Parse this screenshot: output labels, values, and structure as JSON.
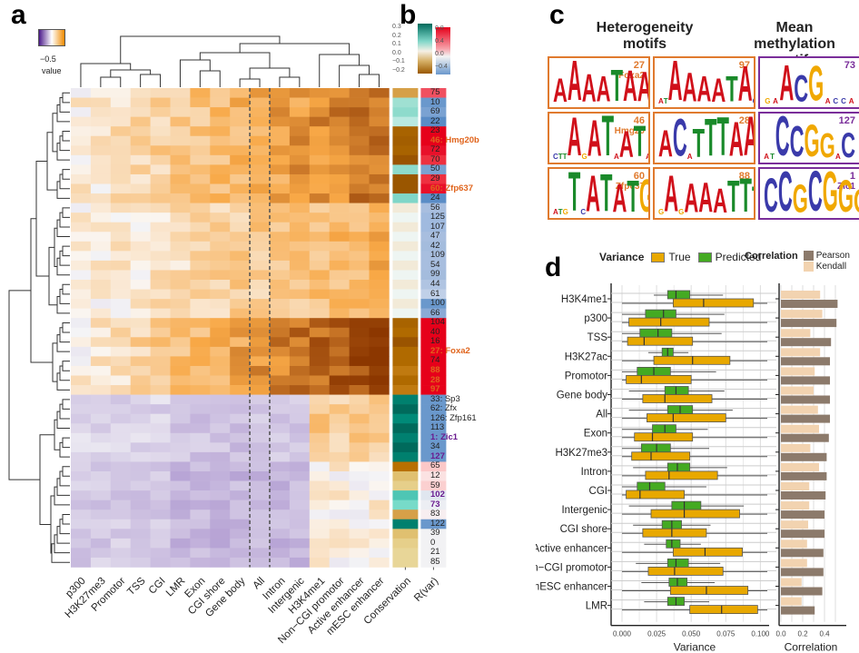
{
  "panels": {
    "a": "a",
    "b": "b",
    "c": "c",
    "d": "d"
  },
  "legend_a": {
    "tick": "−0.5",
    "label": "value",
    "colors": [
      "#4b1a8a",
      "#ffffff",
      "#f08a00"
    ]
  },
  "legend_b": {
    "conservation_ticks": [
      "0.3",
      "0.2",
      "0.1",
      "0.0",
      "−0.1",
      "−0.2"
    ],
    "rvar_ticks": [
      "0.8",
      "0.4",
      "0.0",
      "−0.4"
    ]
  },
  "heatmap": {
    "columns": [
      "p300",
      "H3K27me3",
      "Promotor",
      "TSS",
      "CGI",
      "LMR",
      "Exon",
      "CGI shore",
      "Gene body",
      "All",
      "Intron",
      "Intergenic",
      "H3K4me1",
      "Non−CGI promotor",
      "Active enhancer",
      "mESC enhancer"
    ],
    "annotation_columns": [
      "Conservation",
      "R(var)"
    ],
    "rows": [
      {
        "label": "75",
        "hl": ""
      },
      {
        "label": "10",
        "hl": ""
      },
      {
        "label": "69",
        "hl": ""
      },
      {
        "label": "22",
        "hl": ""
      },
      {
        "label": "23",
        "hl": ""
      },
      {
        "label": "46: Hmg20b",
        "hl": "orange"
      },
      {
        "label": "72",
        "hl": ""
      },
      {
        "label": "70",
        "hl": ""
      },
      {
        "label": "50",
        "hl": ""
      },
      {
        "label": "29",
        "hl": ""
      },
      {
        "label": "60: Zfp637",
        "hl": "orange"
      },
      {
        "label": "24",
        "hl": ""
      },
      {
        "label": "56",
        "hl": ""
      },
      {
        "label": "125",
        "hl": ""
      },
      {
        "label": "107",
        "hl": ""
      },
      {
        "label": "47",
        "hl": ""
      },
      {
        "label": "42",
        "hl": ""
      },
      {
        "label": "109",
        "hl": ""
      },
      {
        "label": "54",
        "hl": ""
      },
      {
        "label": "99",
        "hl": ""
      },
      {
        "label": "44",
        "hl": ""
      },
      {
        "label": "61",
        "hl": ""
      },
      {
        "label": "100",
        "hl": ""
      },
      {
        "label": "66",
        "hl": ""
      },
      {
        "label": "104",
        "hl": ""
      },
      {
        "label": "40",
        "hl": ""
      },
      {
        "label": "16",
        "hl": ""
      },
      {
        "label": "27: Foxa2",
        "hl": "orange"
      },
      {
        "label": "74",
        "hl": ""
      },
      {
        "label": "88",
        "hl": "orange"
      },
      {
        "label": "28",
        "hl": "orange"
      },
      {
        "label": "97",
        "hl": "orange"
      },
      {
        "label": "33: Sp3",
        "hl": ""
      },
      {
        "label": "62: Zfx",
        "hl": ""
      },
      {
        "label": "126: Zfp161",
        "hl": ""
      },
      {
        "label": "113",
        "hl": ""
      },
      {
        "label": "1: Zic1",
        "hl": "purple"
      },
      {
        "label": "34",
        "hl": ""
      },
      {
        "label": "127",
        "hl": "purple"
      },
      {
        "label": "65",
        "hl": ""
      },
      {
        "label": "12",
        "hl": ""
      },
      {
        "label": "59",
        "hl": ""
      },
      {
        "label": "102",
        "hl": "purple"
      },
      {
        "label": "73",
        "hl": "purple"
      },
      {
        "label": "83",
        "hl": ""
      },
      {
        "label": "122",
        "hl": ""
      },
      {
        "label": "39",
        "hl": ""
      },
      {
        "label": "0",
        "hl": ""
      },
      {
        "label": "21",
        "hl": ""
      },
      {
        "label": "85",
        "hl": ""
      }
    ],
    "highlight_colors": {
      "orange": "#e0641c",
      "purple": "#6a1b8f"
    }
  },
  "motifs": {
    "heterogeneity_title": "Heterogeneity motifs",
    "methylation_title": "Mean methylation motifs",
    "heterogeneity_color": "#e07a2e",
    "methylation_color": "#7a2e9a",
    "heterogeneity": [
      {
        "id": "27",
        "name": "Foxa2",
        "seq": "AAAATAA···A"
      },
      {
        "id": "97",
        "name": "",
        "seq": "··AAAATA·A"
      },
      {
        "id": "46",
        "name": "Hmg20",
        "seq": "···A·AT·AT·A"
      },
      {
        "id": "28",
        "name": "",
        "seq": "AC·TTTAAATT"
      },
      {
        "id": "60",
        "name": "Zfp637",
        "seq": "···T·ATATG"
      },
      {
        "id": "88",
        "name": "",
        "seq": "·A·AAATTT·"
      }
    ],
    "methylation": [
      {
        "id": "73",
        "name": "",
        "seq": "··ACG····"
      },
      {
        "id": "127",
        "name": "",
        "seq": "··CCGG·C"
      },
      {
        "id": "1",
        "name": "Zic1",
        "seq": "CCGCGGGGGG"
      }
    ]
  },
  "panel_d": {
    "variance_legend": {
      "title": "Variance",
      "true": "True",
      "predicted": "Predicted"
    },
    "correlation_legend": {
      "title": "Correlation",
      "pearson": "Pearson",
      "kendall": "Kendall"
    },
    "colors": {
      "true": "#e8a800",
      "predicted": "#44aa22",
      "pearson": "#8c7a6b",
      "kendall": "#f2d3b0"
    }
  },
  "chart_data": [
    {
      "type": "heatmap",
      "title": "",
      "xlabel": "",
      "ylabel": "",
      "colorbar": {
        "label": "value",
        "range": [
          -0.5,
          0.5
        ]
      },
      "dashed_column_separators": [
        "All"
      ]
    },
    {
      "type": "bar",
      "orientation": "horizontal-boxplot",
      "title": "",
      "xlabel": "Variance",
      "xlim": [
        0,
        0.105
      ],
      "xticks": [
        "0.000",
        "0.025",
        "0.050",
        "0.075",
        "0.100"
      ],
      "categories": [
        "H3K4me1",
        "p300",
        "TSS",
        "H3K27ac",
        "Promotor",
        "Gene body",
        "All",
        "Exon",
        "H3K27me3",
        "Intron",
        "CGI",
        "Intergenic",
        "CGI shore",
        "Active enhancer",
        "Non−CGI promotor",
        "mESC enhancer",
        "LMR"
      ],
      "series": [
        {
          "name": "True",
          "boxes": [
            [
              0,
              0.037,
              0.059,
              0.095,
              0.105
            ],
            [
              0,
              0.005,
              0.028,
              0.063,
              0.105
            ],
            [
              0,
              0.004,
              0.016,
              0.051,
              0.105
            ],
            [
              0,
              0.023,
              0.051,
              0.078,
              0.105
            ],
            [
              0,
              0.003,
              0.014,
              0.05,
              0.105
            ],
            [
              0,
              0.015,
              0.031,
              0.065,
              0.105
            ],
            [
              0,
              0.018,
              0.037,
              0.075,
              0.105
            ],
            [
              0,
              0.009,
              0.022,
              0.051,
              0.105
            ],
            [
              0,
              0.007,
              0.021,
              0.049,
              0.105
            ],
            [
              0,
              0.017,
              0.034,
              0.069,
              0.105
            ],
            [
              0,
              0.003,
              0.013,
              0.045,
              0.105
            ],
            [
              0,
              0.021,
              0.045,
              0.085,
              0.105
            ],
            [
              0,
              0.015,
              0.036,
              0.061,
              0.105
            ],
            [
              0,
              0.037,
              0.06,
              0.087,
              0.105
            ],
            [
              0,
              0.019,
              0.038,
              0.073,
              0.105
            ],
            [
              0,
              0.035,
              0.061,
              0.091,
              0.105
            ],
            [
              0,
              0.049,
              0.072,
              0.098,
              0.105
            ]
          ]
        },
        {
          "name": "Predicted",
          "boxes": [
            [
              0.023,
              0.033,
              0.039,
              0.049,
              0.073
            ],
            [
              0,
              0.017,
              0.03,
              0.039,
              0.074
            ],
            [
              0,
              0.013,
              0.026,
              0.036,
              0.072
            ],
            [
              0.019,
              0.029,
              0.033,
              0.037,
              0.048
            ],
            [
              0,
              0.011,
              0.023,
              0.035,
              0.068
            ],
            [
              0.005,
              0.031,
              0.039,
              0.048,
              0.074
            ],
            [
              0.005,
              0.033,
              0.042,
              0.051,
              0.08
            ],
            [
              0,
              0.022,
              0.031,
              0.039,
              0.062
            ],
            [
              0,
              0.014,
              0.025,
              0.035,
              0.063
            ],
            [
              0.008,
              0.033,
              0.04,
              0.049,
              0.076
            ],
            [
              0,
              0.011,
              0.02,
              0.031,
              0.061
            ],
            [
              0.005,
              0.036,
              0.045,
              0.057,
              0.088
            ],
            [
              0.008,
              0.029,
              0.036,
              0.043,
              0.064
            ],
            [
              0.016,
              0.032,
              0.036,
              0.042,
              0.057
            ],
            [
              0.01,
              0.033,
              0.039,
              0.048,
              0.071
            ],
            [
              0.014,
              0.034,
              0.04,
              0.047,
              0.067
            ],
            [
              0.016,
              0.033,
              0.039,
              0.045,
              0.063
            ]
          ]
        }
      ],
      "box_format": [
        "min",
        "q1",
        "median",
        "q3",
        "max"
      ]
    },
    {
      "type": "bar",
      "orientation": "horizontal",
      "title": "",
      "xlabel": "Correlation",
      "xlim": [
        0,
        0.55
      ],
      "xticks": [
        "0.0",
        "0.2",
        "0.4"
      ],
      "categories": [
        "H3K4me1",
        "p300",
        "TSS",
        "H3K27ac",
        "Promotor",
        "Gene body",
        "All",
        "Exon",
        "H3K27me3",
        "Intron",
        "CGI",
        "Intergenic",
        "CGI shore",
        "Active enhancer",
        "Non−CGI promotor",
        "mESC enhancer",
        "LMR"
      ],
      "series": [
        {
          "name": "Kendall",
          "values": [
            0.36,
            0.38,
            0.27,
            0.36,
            0.31,
            0.3,
            0.34,
            0.35,
            0.27,
            0.35,
            0.26,
            0.26,
            0.25,
            0.24,
            0.24,
            0.19,
            0.19
          ]
        },
        {
          "name": "Pearson",
          "values": [
            0.52,
            0.51,
            0.46,
            0.45,
            0.45,
            0.45,
            0.45,
            0.44,
            0.42,
            0.42,
            0.41,
            0.4,
            0.4,
            0.39,
            0.39,
            0.38,
            0.31
          ]
        }
      ]
    }
  ]
}
